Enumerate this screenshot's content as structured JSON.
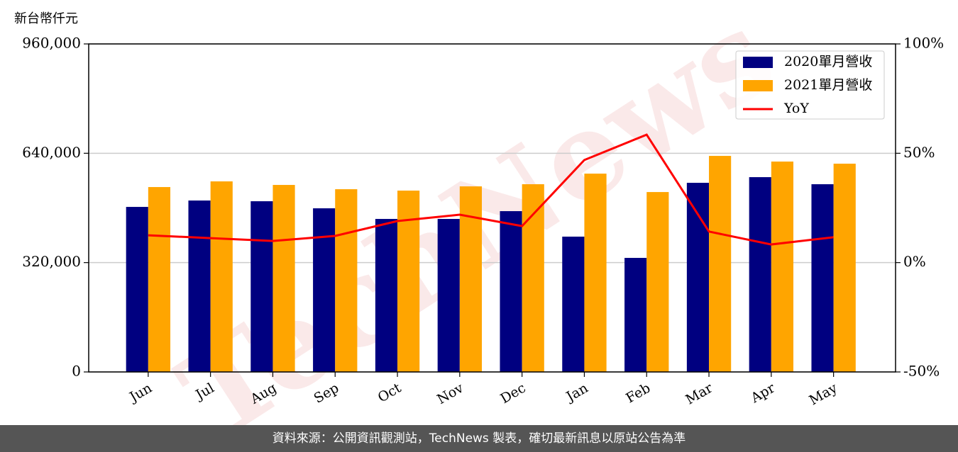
{
  "chart_data": {
    "type": "bar",
    "y_label": "新台幣仟元",
    "watermark": "TechNews",
    "categories": [
      "Jun",
      "Jul",
      "Aug",
      "Sep",
      "Oct",
      "Nov",
      "Dec",
      "Jan",
      "Feb",
      "Mar",
      "Apr",
      "May"
    ],
    "series": [
      {
        "name": "2020單月營收",
        "color": "#000080",
        "values": [
          483000,
          501700,
          499600,
          478900,
          447800,
          447800,
          470600,
          396000,
          333800,
          553500,
          570100,
          549400
        ]
      },
      {
        "name": "2021單月營收",
        "color": "#ffa500",
        "values": [
          541100,
          557700,
          547300,
          534800,
          530700,
          543100,
          549400,
          580400,
          526500,
          632300,
          615700,
          609500
        ]
      },
      {
        "name": "YoY",
        "type": "line",
        "axis": "y2",
        "color": "#ff0000",
        "values": [
          12.5,
          11.2,
          9.9,
          12.2,
          19.0,
          21.9,
          16.7,
          46.9,
          58.5,
          14.2,
          8.3,
          11.6
        ]
      }
    ],
    "ylim": [
      0,
      960000
    ],
    "yticks": [
      0,
      {
        "value": 320000,
        "label": "320,000"
      },
      {
        "value": 640000,
        "label": "640,000"
      },
      {
        "value": 960000,
        "label": "960,000"
      }
    ],
    "y2lim": [
      -50,
      100
    ],
    "y2ticks": [
      {
        "value": -50,
        "label": "-50%"
      },
      {
        "value": 0,
        "label": "0%"
      },
      {
        "value": 50,
        "label": "50%"
      },
      {
        "value": 100,
        "label": "100%"
      }
    ],
    "grid": true,
    "legend": "upper right",
    "footer": "資料來源：公開資訊觀測站，TechNews 製表，確切最新訊息以原站公告為準"
  }
}
